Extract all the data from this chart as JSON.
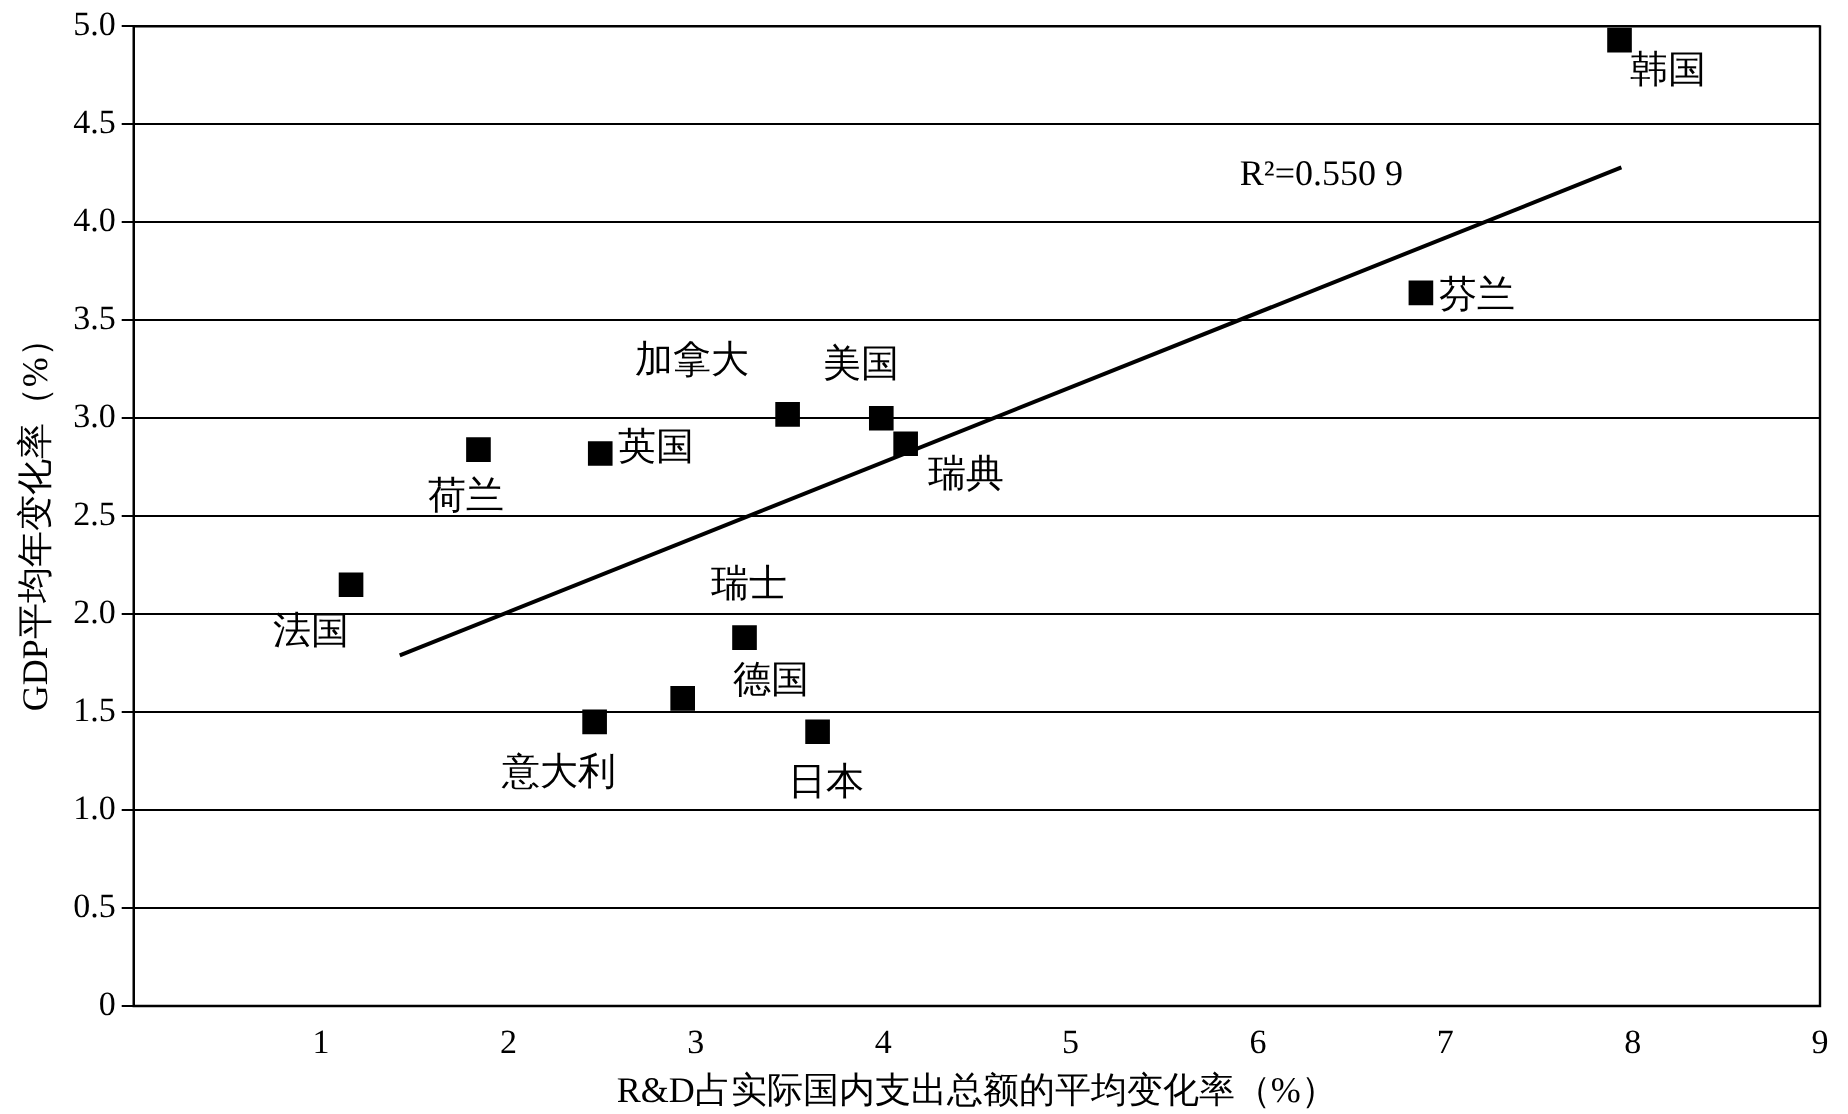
{
  "chart_data": {
    "type": "scatter",
    "xlabel": "R&D占实际国内支出总额的平均变化率（%）",
    "ylabel": "GDP平均年变化率（%）",
    "xlim": [
      0,
      9
    ],
    "xticks": [
      1,
      2,
      3,
      4,
      5,
      6,
      7,
      8,
      9
    ],
    "ylim": [
      0,
      5
    ],
    "yticks": [
      0,
      0.5,
      {
        "value": 1,
        "label": "1.0"
      },
      1.5,
      {
        "value": 2,
        "label": "2.0"
      },
      2.5,
      {
        "value": 3,
        "label": "3.0"
      },
      3.5,
      {
        "value": 4,
        "label": "4.0"
      },
      4.5,
      {
        "value": 5,
        "label": "5.0"
      }
    ],
    "grid": "y",
    "marker": "square",
    "legend": false,
    "series": [
      {
        "color": "#000000",
        "x": [
          7.93,
          6.87,
          3.49,
          3.99,
          4.12,
          1.84,
          2.49,
          1.16,
          3.26,
          2.93,
          2.46,
          3.65
        ],
        "values": [
          4.93,
          3.64,
          3.02,
          3.0,
          2.87,
          2.84,
          2.82,
          2.15,
          1.88,
          1.57,
          1.45,
          1.4
        ]
      },
      {
        "type": "line",
        "color": "#000000",
        "marker": "none",
        "x": [
          1.42,
          7.94
        ],
        "values": [
          1.79,
          4.28
        ]
      }
    ],
    "annotations": [
      {
        "text": "韩国",
        "x": 7.93,
        "y": 4.93
      },
      {
        "text": "芬兰",
        "x": 6.87,
        "y": 3.64
      },
      {
        "text": "加拿大",
        "x": 3.49,
        "y": 3.02
      },
      {
        "text": "美国",
        "x": 3.99,
        "y": 3.0
      },
      {
        "text": "瑞典",
        "x": 4.12,
        "y": 2.87
      },
      {
        "text": "荷兰",
        "x": 1.84,
        "y": 2.84
      },
      {
        "text": "英国",
        "x": 2.49,
        "y": 2.82
      },
      {
        "text": "法国",
        "x": 1.16,
        "y": 2.15
      },
      {
        "text": "瑞士",
        "x": 3.26,
        "y": 1.88
      },
      {
        "text": "德国",
        "x": 2.93,
        "y": 1.57
      },
      {
        "text": "意大利",
        "x": 2.46,
        "y": 1.45
      },
      {
        "text": "日本",
        "x": 3.65,
        "y": 1.4
      },
      "R²=0.550 9"
    ]
  }
}
